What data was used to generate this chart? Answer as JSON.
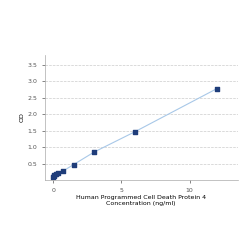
{
  "x": [
    0,
    0.047,
    0.094,
    0.188,
    0.375,
    0.75,
    1.5,
    3,
    6,
    12
  ],
  "y": [
    0.1,
    0.13,
    0.15,
    0.18,
    0.22,
    0.28,
    0.47,
    0.85,
    1.47,
    2.78
  ],
  "line_color": "#a8c8e8",
  "marker_color": "#1f3d7a",
  "marker_size": 3.5,
  "xlabel_line1": "Human Programmed Cell Death Protein 4",
  "xlabel_line2": "Concentration (ng/ml)",
  "ylabel": "OD",
  "xlim": [
    -0.6,
    13.5
  ],
  "ylim": [
    0,
    3.8
  ],
  "yticks": [
    0.5,
    1.0,
    1.5,
    2.0,
    2.5,
    3.0,
    3.5
  ],
  "ytick_labels": [
    "0.5",
    "1.0",
    "1.5",
    "2.0",
    "2.5",
    "3.0",
    "3.5"
  ],
  "xticks": [
    0,
    5,
    10
  ],
  "xtick_labels": [
    "0",
    "5",
    "10"
  ],
  "grid_color": "#cccccc",
  "grid_style": "--",
  "bg_color": "#ffffff",
  "label_fontsize": 4.5,
  "tick_fontsize": 4.5,
  "spine_color": "#aaaaaa"
}
